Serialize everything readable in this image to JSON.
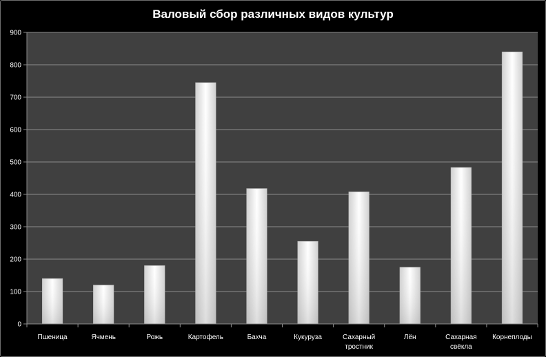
{
  "chart_data": {
    "type": "bar",
    "title": "Валовый сбор различных видов культур",
    "categories": [
      [
        "Пшеница"
      ],
      [
        "Ячмень"
      ],
      [
        "Рожь"
      ],
      [
        "Картофель"
      ],
      [
        "Бахча"
      ],
      [
        "Кукуруза"
      ],
      [
        "Сахарный",
        "тростник"
      ],
      [
        "Лён"
      ],
      [
        "Сахарная",
        "свёкла"
      ],
      [
        "Корнеплоды"
      ]
    ],
    "values": [
      140,
      120,
      180,
      745,
      418,
      255,
      408,
      175,
      483,
      840
    ],
    "ylim": [
      0,
      900
    ],
    "yticks": [
      "0",
      "100",
      "200",
      "300",
      "400",
      "500",
      "600",
      "700",
      "800",
      "900"
    ],
    "grid": true,
    "legend": "none",
    "colors": {
      "background": "#000000",
      "plot_area": "#404040",
      "gridline": "#8c8c8c",
      "bar_edge": "#b4b4b4",
      "bar_light": "#ffffff",
      "bar_dark": "#c8c8c8",
      "text": "#ffffff"
    }
  }
}
